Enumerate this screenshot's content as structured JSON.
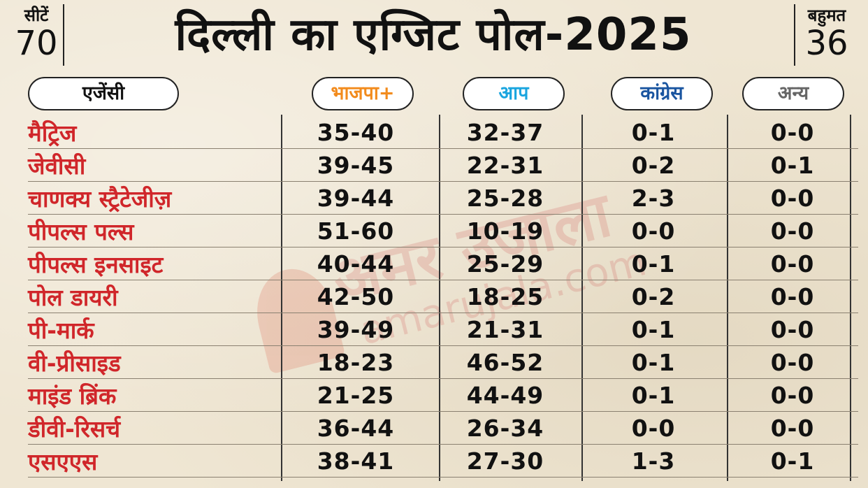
{
  "header": {
    "seats_label": "सीटें",
    "seats_value": "70",
    "title": "दिल्ली का एग्जिट पोल-2025",
    "majority_label": "बहुमत",
    "majority_value": "36"
  },
  "columns": {
    "agency": "एजेंसी",
    "bjp": "भाजपा+",
    "aap": "आप",
    "congress": "कांग्रेस",
    "others": "अन्य"
  },
  "colors": {
    "bjp": "#f28b1d",
    "aap": "#1aa5df",
    "congress": "#1a55a0",
    "others": "#666666",
    "agency_text": "#d0262a"
  },
  "watermark": {
    "text": "अमर उजाला",
    "sub": "amarujala.com"
  },
  "rows": [
    {
      "agency": "मैट्रिज",
      "bjp": "35-40",
      "aap": "32-37",
      "congress": "0-1",
      "others": "0-0"
    },
    {
      "agency": "जेवीसी",
      "bjp": "39-45",
      "aap": "22-31",
      "congress": "0-2",
      "others": "0-1"
    },
    {
      "agency": "चाणक्य स्ट्रैटेजीज़",
      "bjp": "39-44",
      "aap": "25-28",
      "congress": "2-3",
      "others": "0-0"
    },
    {
      "agency": "पीपल्स पल्स",
      "bjp": "51-60",
      "aap": "10-19",
      "congress": "0-0",
      "others": "0-0"
    },
    {
      "agency": "पीपल्स इनसाइट",
      "bjp": "40-44",
      "aap": "25-29",
      "congress": "0-1",
      "others": "0-0"
    },
    {
      "agency": "पोल डायरी",
      "bjp": "42-50",
      "aap": "18-25",
      "congress": "0-2",
      "others": "0-0"
    },
    {
      "agency": "पी-मार्क",
      "bjp": "39-49",
      "aap": "21-31",
      "congress": "0-1",
      "others": "0-0"
    },
    {
      "agency": "वी-प्रीसाइड",
      "bjp": "18-23",
      "aap": "46-52",
      "congress": "0-1",
      "others": "0-0"
    },
    {
      "agency": "माइंड ब्रिंक",
      "bjp": "21-25",
      "aap": "44-49",
      "congress": "0-1",
      "others": "0-0"
    },
    {
      "agency": "डीवी-रिसर्च",
      "bjp": "36-44",
      "aap": "26-34",
      "congress": "0-0",
      "others": "0-0"
    },
    {
      "agency": "एसएएस",
      "bjp": "38-41",
      "aap": "27-30",
      "congress": "1-3",
      "others": "0-1"
    }
  ]
}
